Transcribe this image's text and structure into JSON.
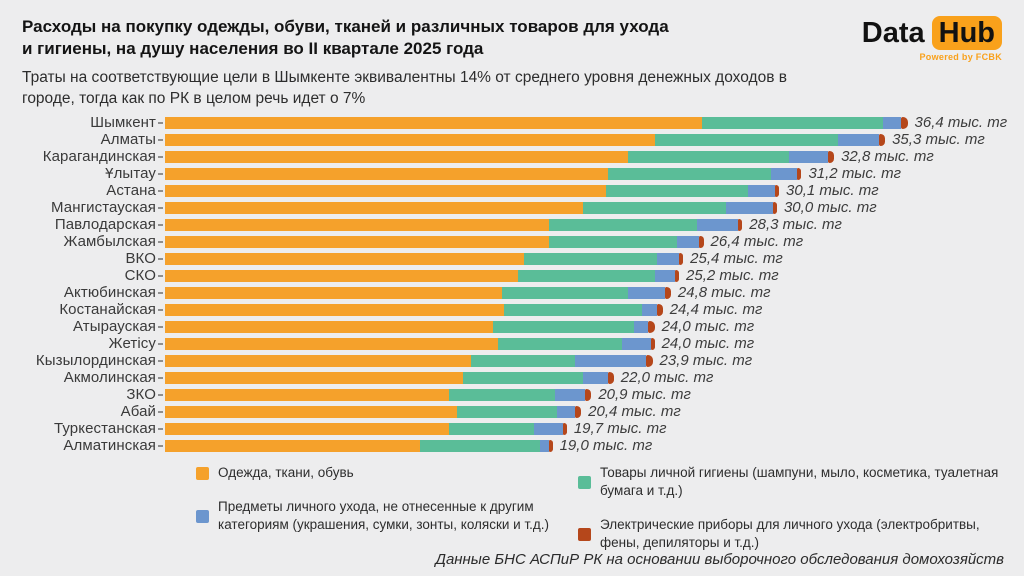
{
  "header": {
    "title_line1": "Расходы на покупку одежды, обуви, тканей и различных товаров для ухода",
    "title_line2": "и гигиены, на душу населения во II квартале 2025 года",
    "subtitle_line1": "Траты на соответствующие цели в Шымкенте эквивалентны 14% от среднего уровня денежных доходов в",
    "subtitle_line2": "городе, тогда как по РК в целом речь идет о 7%"
  },
  "logo": {
    "word1": "Data",
    "word2": "Hub",
    "tagline": "Powered by FCBK",
    "accent": "#F9A11B"
  },
  "chart_data": {
    "type": "bar",
    "orientation": "horizontal",
    "stacked": true,
    "grid": false,
    "legend_position": "bottom",
    "unit": "тыс. тг",
    "xlim": [
      0,
      36.4
    ],
    "categories": [
      "Шымкент",
      "Алматы",
      "Карагандинская",
      "Ұлытау",
      "Астана",
      "Мангистауская",
      "Павлодарская",
      "Жамбылская",
      "ВКО",
      "СКО",
      "Актюбинская",
      "Костанайская",
      "Атырауская",
      "Жетісу",
      "Кызылординская",
      "Акмолинская",
      "ЗКО",
      "Абай",
      "Туркестанская",
      "Алматинская"
    ],
    "totals": [
      36.4,
      35.3,
      32.8,
      31.2,
      30.1,
      30.0,
      28.3,
      26.4,
      25.4,
      25.2,
      24.8,
      24.4,
      24.0,
      24.0,
      23.9,
      22.0,
      20.9,
      20.4,
      19.7,
      19.0
    ],
    "value_labels": [
      "36,4 тыс. тг",
      "35,3 тыс. тг",
      "32,8 тыс. тг",
      "31,2 тыс. тг",
      "30,1 тыс. тг",
      "30,0 тыс. тг",
      "28,3 тыс. тг",
      "26,4 тыс. тг",
      "25,4 тыс. тг",
      "25,2 тыс. тг",
      "24,8 тыс. тг",
      "24,4 тыс. тг",
      "24,0 тыс. тг",
      "24,0 тыс. тг",
      "23,9 тыс. тг",
      "22,0 тыс. тг",
      "20,9 тыс. тг",
      "20,4 тыс. тг",
      "19,7 тыс. тг",
      "19,0 тыс. тг"
    ],
    "series": [
      {
        "name": "Одежда, ткани, обувь",
        "color": "#F5A12B",
        "values": [
          26.3,
          24.0,
          22.7,
          21.7,
          21.6,
          20.5,
          18.8,
          18.8,
          17.6,
          17.3,
          16.5,
          16.6,
          16.1,
          16.3,
          15.0,
          14.6,
          13.9,
          14.3,
          13.9,
          12.5
        ]
      },
      {
        "name": "Товары личной гигиены (шампуни, мыло, косметика, туалетная бумага и т.д.)",
        "color": "#5ABD98",
        "values": [
          8.9,
          9.0,
          7.9,
          8.0,
          7.0,
          7.0,
          7.3,
          6.3,
          6.5,
          6.7,
          6.2,
          6.8,
          6.9,
          6.1,
          5.1,
          5.9,
          5.2,
          4.9,
          4.2,
          5.9
        ]
      },
      {
        "name": "Предметы личного ухода, не отнесенные к другим категориям (украшения, сумки, зонты, коляски и т.д.)",
        "color": "#6C96CE",
        "values": [
          0.9,
          2.0,
          1.9,
          1.3,
          1.3,
          2.3,
          2.0,
          1.1,
          1.1,
          1.0,
          1.8,
          0.7,
          0.7,
          1.4,
          3.5,
          1.2,
          1.5,
          0.9,
          1.4,
          0.4
        ]
      },
      {
        "name": "Электрические приборы для личного ухода (электробритвы, фены, депиляторы и т.д.)",
        "color": "#B5471B",
        "values": [
          0.3,
          0.3,
          0.3,
          0.2,
          0.2,
          0.2,
          0.2,
          0.2,
          0.2,
          0.2,
          0.3,
          0.3,
          0.3,
          0.2,
          0.3,
          0.3,
          0.3,
          0.3,
          0.2,
          0.2
        ]
      }
    ]
  },
  "legend": {
    "columns": [
      [
        {
          "label": "Одежда, ткани, обувь",
          "color": "#F5A12B"
        },
        {
          "label": "Предметы личного ухода, не отнесенные к другим категориям (украшения, сумки, зонты, коляски и т.д.)",
          "color": "#6C96CE"
        }
      ],
      [
        {
          "label": "Товары личной гигиены (шампуни, мыло, косметика, туалетная бумага и т.д.)",
          "color": "#5ABD98"
        },
        {
          "label": "Электрические приборы для личного ухода (электробритвы, фены, депиляторы и т.д.)",
          "color": "#B5471B"
        }
      ]
    ]
  },
  "footer": {
    "source": "Данные БНС АСПиР РК на основании выборочного обследования домохозяйств"
  }
}
